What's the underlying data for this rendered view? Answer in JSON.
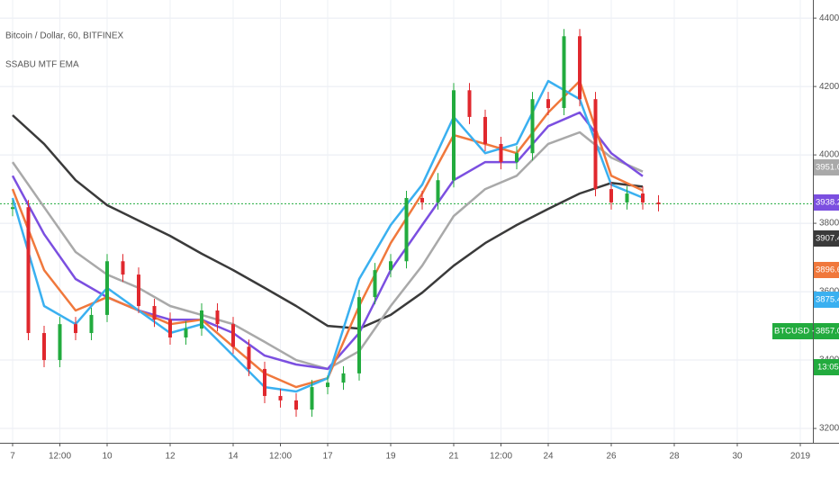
{
  "chart_data": {
    "type": "line",
    "title": "Bitcoin / Dollar, 60, BITFINEX",
    "subtitle": "SSABU MTF EMA",
    "xlim": [
      -0.4,
      25.4
    ],
    "xticks": [
      {
        "value": 0,
        "label": "7"
      },
      {
        "value": 1.5,
        "label": "12:00"
      },
      {
        "value": 3,
        "label": "10"
      },
      {
        "value": 5,
        "label": "12"
      },
      {
        "value": 7,
        "label": "14"
      },
      {
        "value": 8.5,
        "label": "12:00"
      },
      {
        "value": 10,
        "label": "17"
      },
      {
        "value": 12,
        "label": "19"
      },
      {
        "value": 14,
        "label": "21"
      },
      {
        "value": 15.5,
        "label": "12:00"
      },
      {
        "value": 17,
        "label": "24"
      },
      {
        "value": 19,
        "label": "26"
      },
      {
        "value": 21,
        "label": "28"
      },
      {
        "value": 23,
        "label": "30"
      },
      {
        "value": 25,
        "label": "2019"
      }
    ],
    "ylim": [
      3158,
      4453
    ],
    "yticks": [
      {
        "value": 3200,
        "label": "3200.0"
      },
      {
        "value": 3400,
        "label": "3400.0"
      },
      {
        "value": 3600,
        "label": "3600.0"
      },
      {
        "value": 3800,
        "label": "3800.0"
      },
      {
        "value": 4000,
        "label": "4000.0"
      },
      {
        "value": 4200,
        "label": "4200.0"
      },
      {
        "value": 4400,
        "label": "4400.0"
      }
    ],
    "grid": true,
    "price": {
      "up_color": "#22ab3e",
      "down_color": "#e0282e",
      "x": [
        0,
        0.5,
        1,
        1.5,
        2,
        2.5,
        3,
        3.5,
        4,
        4.5,
        5,
        5.5,
        6,
        6.5,
        7,
        7.5,
        8,
        8.5,
        9,
        9.5,
        10,
        10.5,
        11,
        11.5,
        12,
        12.5,
        13,
        13.5,
        14,
        14.5,
        15,
        15.5,
        16,
        16.5,
        17,
        17.5,
        18,
        18.5,
        19,
        19.5,
        20,
        20.5
      ],
      "values": [
        3847,
        3479,
        3400,
        3505,
        3479,
        3532,
        3689,
        3650,
        3558,
        3518,
        3466,
        3492,
        3545,
        3505,
        3439,
        3374,
        3295,
        3282,
        3255,
        3321,
        3334,
        3361,
        3584,
        3663,
        3689,
        3874,
        3861,
        3926,
        4189,
        4111,
        4032,
        3979,
        4005,
        4163,
        4137,
        4347,
        4163,
        3900,
        3861,
        3887,
        3861,
        3857
      ],
      "last_line": 3857,
      "last_labels": [
        "BTCUSD -0.82%",
        "3857.0",
        "13:05"
      ]
    },
    "series": [
      {
        "color": "#3a3a3a",
        "last_label": "3907.4",
        "x": [
          0,
          1,
          2,
          3,
          4,
          5,
          6,
          7,
          8,
          9,
          10,
          11,
          12,
          13,
          14,
          15,
          16,
          17,
          18,
          19,
          20
        ],
        "values": [
          4116,
          4032,
          3926,
          3853,
          3808,
          3763,
          3711,
          3663,
          3611,
          3558,
          3500,
          3492,
          3532,
          3597,
          3676,
          3742,
          3795,
          3842,
          3887,
          3918,
          3907
        ]
      },
      {
        "color": "#a9a9a9",
        "last_label": "3951.0",
        "x": [
          0,
          1,
          2,
          3,
          4,
          5,
          6,
          7,
          8,
          9,
          10,
          11,
          12,
          13,
          14,
          15,
          16,
          17,
          18,
          19,
          20
        ],
        "values": [
          3979,
          3847,
          3716,
          3650,
          3611,
          3558,
          3532,
          3505,
          3453,
          3400,
          3374,
          3426,
          3558,
          3676,
          3821,
          3900,
          3939,
          4032,
          4066,
          3992,
          3951
        ]
      },
      {
        "color": "#7b4fe0",
        "last_label": "3938.2",
        "x": [
          0,
          1,
          2,
          3,
          4,
          5,
          6,
          7,
          8,
          9,
          10,
          11,
          12,
          13,
          14,
          15,
          16,
          17,
          18,
          19,
          20
        ],
        "values": [
          3939,
          3768,
          3637,
          3584,
          3545,
          3518,
          3518,
          3479,
          3413,
          3387,
          3374,
          3479,
          3663,
          3795,
          3926,
          3979,
          3979,
          4084,
          4124,
          4005,
          3938
        ]
      },
      {
        "color": "#f0783c",
        "last_label": "3896.6",
        "x": [
          0,
          1,
          2,
          3,
          4,
          5,
          6,
          7,
          8,
          9,
          10,
          11,
          12,
          13,
          14,
          15,
          16,
          17,
          18,
          19,
          20
        ],
        "values": [
          3900,
          3663,
          3545,
          3584,
          3545,
          3505,
          3518,
          3439,
          3361,
          3321,
          3347,
          3558,
          3742,
          3887,
          4058,
          4032,
          4005,
          4124,
          4216,
          3939,
          3896
        ]
      },
      {
        "color": "#3ab0f0",
        "last_label": "3875.4",
        "x": [
          0,
          1,
          2,
          3,
          4,
          5,
          6,
          7,
          8,
          9,
          10,
          11,
          12,
          13,
          14,
          15,
          16,
          17,
          18,
          19,
          20
        ],
        "values": [
          3874,
          3558,
          3505,
          3611,
          3545,
          3479,
          3505,
          3413,
          3321,
          3308,
          3347,
          3637,
          3795,
          3913,
          4111,
          4005,
          4032,
          4216,
          4163,
          3913,
          3875
        ]
      }
    ]
  }
}
